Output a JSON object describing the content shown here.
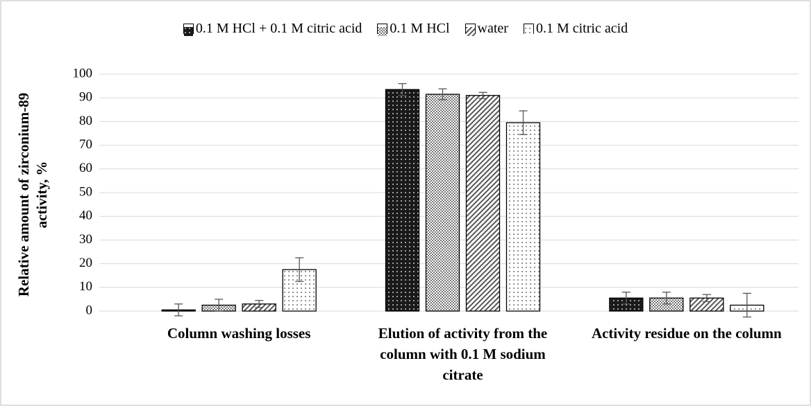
{
  "chart_data": {
    "type": "bar",
    "y_label": "Relative amount of zirconium-89 activity, %",
    "categories": [
      "Column washing losses",
      "Elution of activity from the column with 0.1 M sodium citrate",
      "Activity residue on the column"
    ],
    "series": [
      {
        "name": "0.1 M HCl + 0.1 M citric acid",
        "color": "#1a1a1a",
        "pattern": "dots-dark",
        "values": [
          0.5,
          93.5,
          5.5
        ],
        "errors": [
          2.5,
          2.5,
          2.5
        ]
      },
      {
        "name": "0.1 M HCl",
        "color": "#888888",
        "pattern": "checker",
        "values": [
          2.5,
          91.5,
          5.5
        ],
        "errors": [
          2.5,
          2.3,
          2.5
        ]
      },
      {
        "name": "water",
        "color": "#555555",
        "pattern": "hatch",
        "values": [
          3,
          91,
          5.5
        ],
        "errors": [
          1.5,
          1.3,
          1.5
        ]
      },
      {
        "name": "0.1 M citric acid",
        "color": "#444444",
        "pattern": "dots-light",
        "values": [
          17.5,
          79.5,
          2.5
        ],
        "errors": [
          5,
          5,
          5
        ]
      }
    ],
    "ylim": [
      0,
      100
    ],
    "yticks": [
      0,
      10,
      20,
      30,
      40,
      50,
      60,
      70,
      80,
      90,
      100
    ],
    "grid": true,
    "legend": "top"
  }
}
